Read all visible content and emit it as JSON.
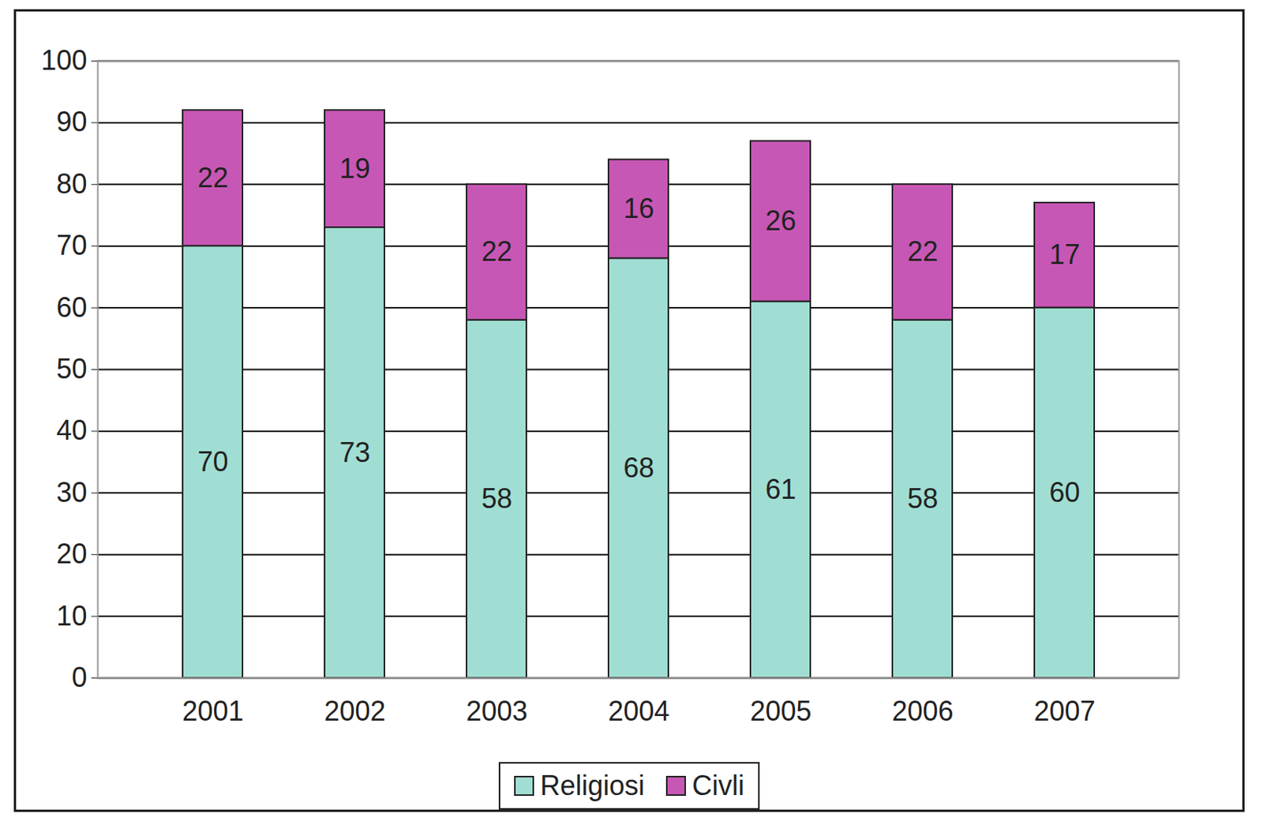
{
  "chart_data": {
    "type": "bar",
    "categories": [
      "2001",
      "2002",
      "2003",
      "2004",
      "2005",
      "2006",
      "2007"
    ],
    "series": [
      {
        "name": "Religiosi",
        "color": "#a0ded3",
        "values": [
          70,
          73,
          58,
          68,
          61,
          58,
          60
        ]
      },
      {
        "name": "Civli",
        "color": "#c757b5",
        "values": [
          22,
          19,
          22,
          16,
          26,
          22,
          17
        ]
      }
    ],
    "ylim": [
      0,
      100
    ],
    "yticks": [
      0,
      10,
      20,
      30,
      40,
      50,
      60,
      70,
      80,
      90,
      100
    ],
    "grid": true,
    "stacked": true,
    "data_labels": true,
    "legend": "bottom"
  }
}
